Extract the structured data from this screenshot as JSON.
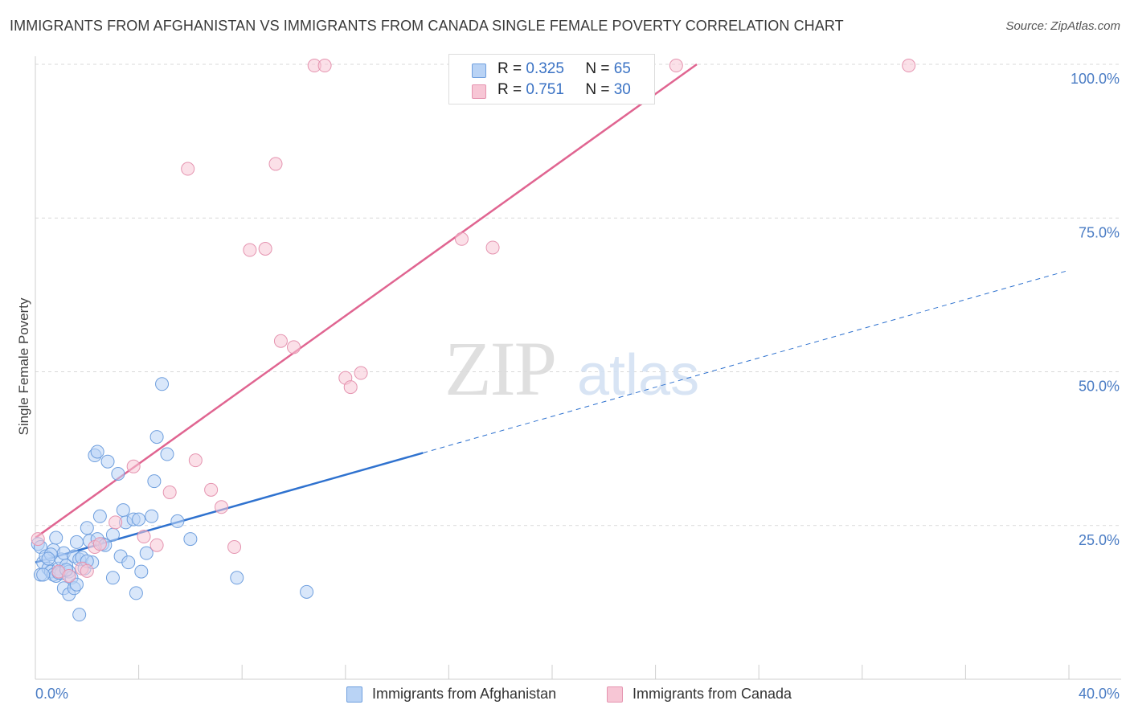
{
  "header": {
    "title": "IMMIGRANTS FROM AFGHANISTAN VS IMMIGRANTS FROM CANADA SINGLE FEMALE POVERTY CORRELATION CHART",
    "source": "Source: ZipAtlas.com"
  },
  "watermark": {
    "zip": "ZIP",
    "atlas": "atlas"
  },
  "colors": {
    "blue_fill": "#b9d3f5",
    "blue_stroke": "#6f9fde",
    "blue_line": "#2f72cf",
    "pink_fill": "#f7c6d5",
    "pink_stroke": "#e594b0",
    "pink_line": "#e06591",
    "axis_label": "#4a7cc4",
    "grid": "#d9d9d9"
  },
  "legend_stats": {
    "r_label": "R =",
    "n_label": "N =",
    "rows": [
      {
        "series": "afghanistan",
        "r": "0.325",
        "n": "65"
      },
      {
        "series": "canada",
        "r": "0.751",
        "n": "30"
      }
    ]
  },
  "chart_data": {
    "type": "scatter",
    "title": "IMMIGRANTS FROM AFGHANISTAN VS IMMIGRANTS FROM CANADA SINGLE FEMALE POVERTY CORRELATION CHART",
    "xlabel": "",
    "ylabel": "Single Female Poverty",
    "xlim": [
      0,
      40
    ],
    "ylim": [
      0,
      102
    ],
    "x_ticks": [
      "0.0%",
      "40.0%"
    ],
    "y_ticks": [
      {
        "value": 100,
        "label": "100.0%"
      },
      {
        "value": 75,
        "label": "75.0%"
      },
      {
        "value": 50,
        "label": "50.0%"
      },
      {
        "value": 25,
        "label": "25.0%"
      }
    ],
    "series": [
      {
        "name": "Immigrants from Afghanistan",
        "color": "blue",
        "r": 0.325,
        "n": 65,
        "trend": {
          "x0": 0,
          "y0": 19,
          "x1": 15,
          "y1": 36.8,
          "dash_to_x": 40,
          "dash_to_y": 66.5
        },
        "points": [
          [
            0.1,
            22
          ],
          [
            0.2,
            21.5
          ],
          [
            0.2,
            17
          ],
          [
            0.3,
            19
          ],
          [
            0.4,
            20
          ],
          [
            0.5,
            18
          ],
          [
            0.6,
            17.5
          ],
          [
            0.7,
            17
          ],
          [
            0.7,
            21
          ],
          [
            0.8,
            23
          ],
          [
            0.8,
            16.8
          ],
          [
            0.9,
            18
          ],
          [
            1.0,
            17.2
          ],
          [
            1.0,
            19.5
          ],
          [
            1.1,
            14.8
          ],
          [
            1.1,
            20.5
          ],
          [
            1.2,
            18.5
          ],
          [
            1.3,
            13.8
          ],
          [
            1.3,
            17.5
          ],
          [
            1.4,
            16.5
          ],
          [
            1.5,
            14.8
          ],
          [
            1.5,
            20
          ],
          [
            1.6,
            15.4
          ],
          [
            1.7,
            19.5
          ],
          [
            1.8,
            19.8
          ],
          [
            1.9,
            18
          ],
          [
            2.0,
            24.6
          ],
          [
            2.1,
            22.5
          ],
          [
            2.2,
            19
          ],
          [
            2.3,
            36.4
          ],
          [
            2.4,
            37
          ],
          [
            2.5,
            26.5
          ],
          [
            2.6,
            22
          ],
          [
            2.8,
            35.4
          ],
          [
            3.0,
            23.5
          ],
          [
            3.0,
            16.5
          ],
          [
            3.2,
            33.4
          ],
          [
            3.3,
            20
          ],
          [
            3.4,
            27.5
          ],
          [
            3.5,
            25.5
          ],
          [
            3.6,
            19
          ],
          [
            3.8,
            26
          ],
          [
            3.9,
            14
          ],
          [
            4.0,
            26
          ],
          [
            4.1,
            17.5
          ],
          [
            4.3,
            20.5
          ],
          [
            4.5,
            26.5
          ],
          [
            4.6,
            32.2
          ],
          [
            4.7,
            39.4
          ],
          [
            4.9,
            48
          ],
          [
            5.1,
            36.6
          ],
          [
            5.5,
            25.7
          ],
          [
            6.0,
            22.8
          ],
          [
            7.8,
            16.5
          ],
          [
            10.5,
            14.2
          ],
          [
            2.4,
            22.8
          ],
          [
            1.7,
            10.5
          ],
          [
            2.7,
            21.8
          ],
          [
            0.9,
            17.3
          ],
          [
            1.2,
            17.8
          ],
          [
            0.3,
            17
          ],
          [
            0.6,
            20.3
          ],
          [
            1.6,
            22.3
          ],
          [
            2.0,
            19.2
          ],
          [
            0.5,
            19.6
          ]
        ]
      },
      {
        "name": "Immigrants from Canada",
        "color": "pink",
        "r": 0.751,
        "n": 30,
        "trend": {
          "x0": 0,
          "y0": 23,
          "x1": 25.6,
          "y1": 100
        },
        "points": [
          [
            0.1,
            22.8
          ],
          [
            0.9,
            17.5
          ],
          [
            1.3,
            16.8
          ],
          [
            1.8,
            18
          ],
          [
            2.0,
            17.6
          ],
          [
            2.3,
            21.5
          ],
          [
            2.5,
            22
          ],
          [
            3.1,
            25.5
          ],
          [
            3.8,
            34.6
          ],
          [
            4.2,
            23.2
          ],
          [
            4.7,
            21.8
          ],
          [
            5.2,
            30.4
          ],
          [
            5.9,
            83
          ],
          [
            6.2,
            35.6
          ],
          [
            6.8,
            30.8
          ],
          [
            7.2,
            28
          ],
          [
            7.7,
            21.5
          ],
          [
            8.3,
            69.8
          ],
          [
            8.9,
            70
          ],
          [
            9.3,
            83.8
          ],
          [
            9.5,
            55
          ],
          [
            10.0,
            54
          ],
          [
            10.8,
            99.8
          ],
          [
            11.2,
            99.8
          ],
          [
            12.0,
            49
          ],
          [
            12.2,
            47.5
          ],
          [
            12.6,
            49.8
          ],
          [
            16.5,
            71.6
          ],
          [
            17.7,
            70.2
          ],
          [
            24.8,
            99.8
          ]
        ],
        "extra_points": [
          [
            33.8,
            99.8
          ]
        ]
      }
    ],
    "legend": [
      "Immigrants from Afghanistan",
      "Immigrants from Canada"
    ],
    "legend_position": "bottom-center",
    "grid": true
  }
}
